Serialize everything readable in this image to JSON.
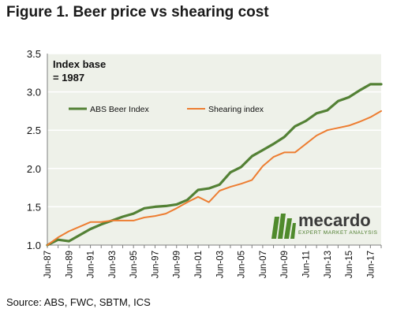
{
  "figure": {
    "title": "Figure 1. Beer price vs shearing cost",
    "note_line1": "Index base",
    "note_line2": "= 1987",
    "source": "Source: ABS, FWC, SBTM, ICS",
    "logo_word": "mecardo",
    "logo_tagline": "EXPERT MARKET ANALYSIS"
  },
  "colors": {
    "beer": "#538135",
    "shearing": "#ed7d31",
    "plot_bg": "#eef1e9",
    "grid": "#ffffff",
    "logo_green": "#4f8a2c"
  },
  "chart_data": {
    "type": "line",
    "title": "Figure 1. Beer price vs shearing cost",
    "xlabel": "",
    "ylabel": "",
    "ylim": [
      1.0,
      3.5
    ],
    "yticks": [
      "1.0",
      "1.5",
      "2.0",
      "2.5",
      "3.0",
      "3.5"
    ],
    "grid": true,
    "legend_position": "upper-left",
    "x": [
      "Jun-87",
      "Jun-88",
      "Jun-89",
      "Jun-90",
      "Jun-91",
      "Jun-92",
      "Jun-93",
      "Jun-94",
      "Jun-95",
      "Jun-96",
      "Jun-97",
      "Jun-98",
      "Jun-99",
      "Jun-00",
      "Jun-01",
      "Jun-02",
      "Jun-03",
      "Jun-04",
      "Jun-05",
      "Jun-06",
      "Jun-07",
      "Jun-08",
      "Jun-09",
      "Jun-10",
      "Jun-11",
      "Jun-12",
      "Jun-13",
      "Jun-14",
      "Jun-15",
      "Jun-16",
      "Jun-17",
      "Jun-18"
    ],
    "x_tick_labels": [
      "Jun-87",
      "Jun-89",
      "Jun-91",
      "Jun-93",
      "Jun-95",
      "Jun-97",
      "Jun-99",
      "Jun-01",
      "Jun-03",
      "Jun-05",
      "Jun-07",
      "Jun-09",
      "Jun-11",
      "Jun-13",
      "Jun-15",
      "Jun-17"
    ],
    "series": [
      {
        "name": "ABS Beer Index",
        "color": "#538135",
        "values": [
          1.0,
          1.07,
          1.05,
          1.13,
          1.21,
          1.27,
          1.32,
          1.37,
          1.41,
          1.48,
          1.5,
          1.51,
          1.53,
          1.59,
          1.72,
          1.74,
          1.79,
          1.95,
          2.02,
          2.16,
          2.24,
          2.32,
          2.41,
          2.55,
          2.62,
          2.72,
          2.76,
          2.88,
          2.93,
          3.02,
          3.1,
          3.1
        ]
      },
      {
        "name": "Shearing index",
        "color": "#ed7d31",
        "values": [
          1.0,
          1.1,
          1.18,
          1.24,
          1.3,
          1.3,
          1.32,
          1.32,
          1.32,
          1.36,
          1.38,
          1.41,
          1.48,
          1.56,
          1.63,
          1.56,
          1.71,
          1.76,
          1.8,
          1.85,
          2.03,
          2.15,
          2.21,
          2.21,
          2.32,
          2.43,
          2.5,
          2.53,
          2.56,
          2.61,
          2.67,
          2.75
        ]
      }
    ]
  }
}
